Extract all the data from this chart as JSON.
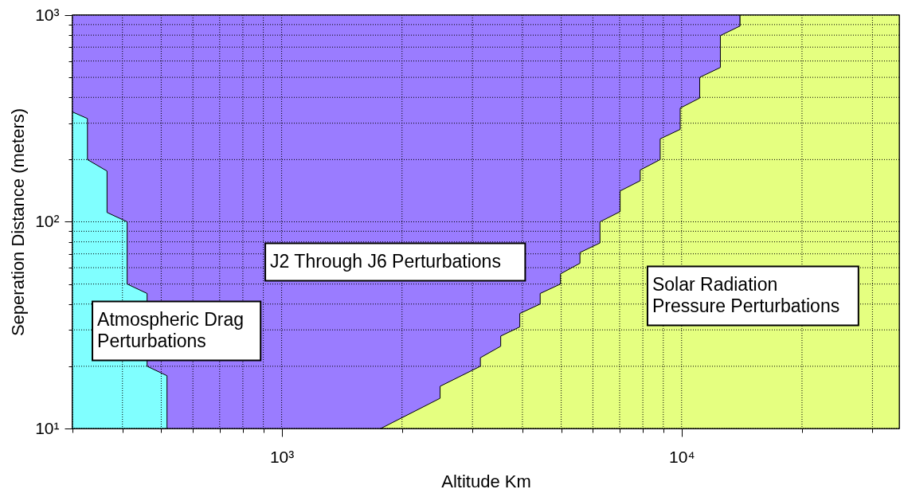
{
  "chart_data": {
    "type": "area",
    "xlabel": "Altitude Km",
    "ylabel": "Seperation Distance (meters)",
    "log": "xy",
    "grid": true,
    "xlim": [
      300,
      35000
    ],
    "ylim": [
      10,
      1000
    ],
    "xticks": [
      {
        "value": 300,
        "label": null
      },
      {
        "value": 400,
        "label": null
      },
      {
        "value": 500,
        "label": null
      },
      {
        "value": 600,
        "label": null
      },
      {
        "value": 700,
        "label": null
      },
      {
        "value": 800,
        "label": null
      },
      {
        "value": 900,
        "label": null
      },
      {
        "value": 1000,
        "label": "10³"
      },
      {
        "value": 2000,
        "label": null
      },
      {
        "value": 3000,
        "label": null
      },
      {
        "value": 4000,
        "label": null
      },
      {
        "value": 5000,
        "label": null
      },
      {
        "value": 6000,
        "label": null
      },
      {
        "value": 7000,
        "label": null
      },
      {
        "value": 8000,
        "label": null
      },
      {
        "value": 9000,
        "label": null
      },
      {
        "value": 10000,
        "label": "10⁴"
      },
      {
        "value": 20000,
        "label": null
      },
      {
        "value": 30000,
        "label": null
      }
    ],
    "yticks": [
      {
        "value": 10,
        "label": "10¹"
      },
      {
        "value": 20,
        "label": null
      },
      {
        "value": 30,
        "label": null
      },
      {
        "value": 40,
        "label": null
      },
      {
        "value": 50,
        "label": null
      },
      {
        "value": 60,
        "label": null
      },
      {
        "value": 70,
        "label": null
      },
      {
        "value": 80,
        "label": null
      },
      {
        "value": 90,
        "label": null
      },
      {
        "value": 100,
        "label": "10²"
      },
      {
        "value": 200,
        "label": null
      },
      {
        "value": 300,
        "label": null
      },
      {
        "value": 400,
        "label": null
      },
      {
        "value": 500,
        "label": null
      },
      {
        "value": 600,
        "label": null
      },
      {
        "value": 700,
        "label": null
      },
      {
        "value": 800,
        "label": null
      },
      {
        "value": 900,
        "label": null
      },
      {
        "value": 1000,
        "label": "10³"
      }
    ],
    "series": [
      {
        "color": "#9a7cff",
        "x": [
          300,
          14000
        ],
        "values": [
          1000,
          1000
        ]
      },
      {
        "color": "#80ffff",
        "x": [
          300,
          327,
          327,
          366,
          366,
          411,
          411,
          461,
          461,
          517,
          517
        ],
        "values": [
          340,
          316,
          200,
          176,
          111,
          100,
          50,
          45,
          20,
          18,
          10
        ]
      },
      {
        "color": "#e5ff80",
        "x": [
          1770,
          2490,
          2490,
          3140,
          3140,
          3530,
          3530,
          3940,
          3940,
          4430,
          4430,
          4980,
          4980,
          5570,
          5570,
          6250,
          6250,
          7020,
          7020,
          7880,
          7880,
          8840,
          8840,
          9920,
          9920,
          11100,
          11100,
          12500,
          12500,
          14000,
          14000,
          35000
        ],
        "values": [
          10,
          14,
          16,
          20,
          22,
          25,
          28,
          31,
          36,
          40,
          45,
          50,
          56,
          63,
          71,
          79,
          100,
          112,
          141,
          158,
          178,
          200,
          252,
          280,
          355,
          397,
          500,
          558,
          796,
          886,
          1000,
          1000
        ]
      }
    ],
    "annotations": [
      "J2 Through J6 Perturbations",
      "Atmospheric Drag\nPerturbations",
      "Solar Radiation\nPressure Perturbations"
    ]
  }
}
